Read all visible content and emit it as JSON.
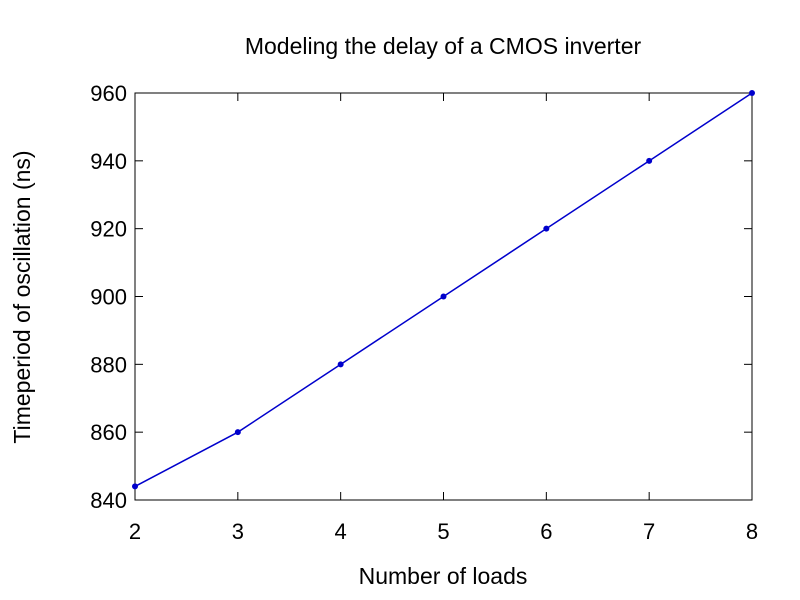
{
  "chart_data": {
    "type": "line",
    "title": "Modeling the delay of a CMOS inverter",
    "xlabel": "Number of loads",
    "ylabel": "Timeperiod of oscillation (ns)",
    "xlim": [
      2,
      8
    ],
    "ylim": [
      840,
      960
    ],
    "xticks": [
      "2",
      "3",
      "4",
      "5",
      "6",
      "7",
      "8"
    ],
    "yticks": [
      "840",
      "860",
      "880",
      "900",
      "920",
      "940",
      "960"
    ],
    "grid": false,
    "legend": "none",
    "series": [
      {
        "color": "#0000cc",
        "marker": "filled-circle",
        "points": [
          {
            "x": 2,
            "y": 844
          },
          {
            "x": 3,
            "y": 860
          },
          {
            "x": 4,
            "y": 880
          },
          {
            "x": 5,
            "y": 900
          },
          {
            "x": 6,
            "y": 920
          },
          {
            "x": 7,
            "y": 940
          },
          {
            "x": 8,
            "y": 960
          }
        ]
      }
    ]
  }
}
